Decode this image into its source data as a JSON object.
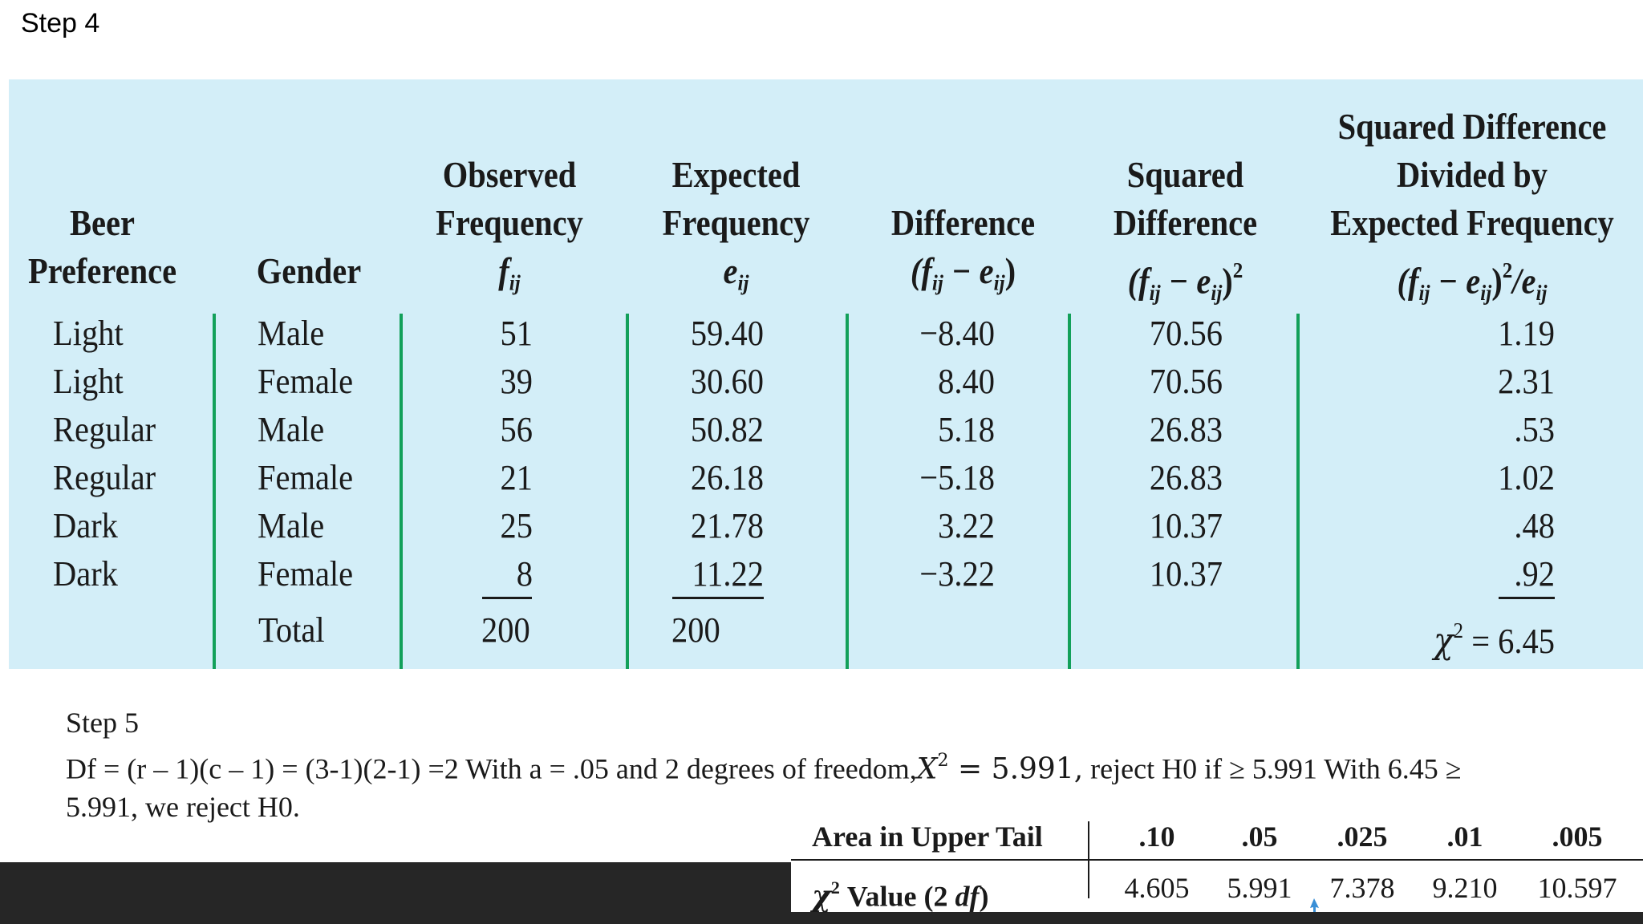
{
  "step4_title": "Step 4",
  "table": {
    "headers": {
      "beer_preference": [
        "Beer",
        "Preference"
      ],
      "gender": "Gender",
      "observed": [
        "Observed",
        "Frequency",
        "f",
        "ij"
      ],
      "expected": [
        "Expected",
        "Frequency",
        "e",
        "ij"
      ],
      "difference": [
        "Difference",
        "(f",
        "ij",
        " − e",
        "ij",
        ")"
      ],
      "squared": [
        "Squared",
        "Difference",
        "(f",
        "ij",
        " − e",
        "ij",
        ")",
        "2"
      ],
      "divided": [
        "Squared Difference",
        "Divided by",
        "Expected Frequency",
        "(f",
        "ij",
        " − e",
        "ij",
        ")",
        "2",
        "/e",
        "ij"
      ]
    },
    "rows": [
      {
        "beer": "Light",
        "gender": "Male",
        "observed": "51",
        "expected": "59.40",
        "difference": "−8.40",
        "squared": "70.56",
        "divided": "1.19"
      },
      {
        "beer": "Light",
        "gender": "Female",
        "observed": "39",
        "expected": "30.60",
        "difference": "8.40",
        "squared": "70.56",
        "divided": "2.31"
      },
      {
        "beer": "Regular",
        "gender": "Male",
        "observed": "56",
        "expected": "50.82",
        "difference": "5.18",
        "squared": "26.83",
        "divided": ".53"
      },
      {
        "beer": "Regular",
        "gender": "Female",
        "observed": "21",
        "expected": "26.18",
        "difference": "−5.18",
        "squared": "26.83",
        "divided": "1.02"
      },
      {
        "beer": "Dark",
        "gender": "Male",
        "observed": "25",
        "expected": "21.78",
        "difference": "3.22",
        "squared": "10.37",
        "divided": ".48"
      },
      {
        "beer": "Dark",
        "gender": "Female",
        "observed": "8",
        "expected": "11.22",
        "difference": "−3.22",
        "squared": "10.37",
        "divided": ".92"
      }
    ],
    "total_label": "Total",
    "total_observed": "200",
    "total_expected": "200",
    "chi_symbol": "χ",
    "chi_sup": "2",
    "chi_value": " = 6.45"
  },
  "step5": {
    "title": "Step 5",
    "line1_a": "Df = (r – 1)(c – 1) = (3-1)(2-1) =2 With a = .05 and 2 degrees of freedom,",
    "line1_x": "X",
    "line1_sup": "2",
    "line1_eq": " = 5.991,",
    "line1_b": " reject H0 if ≥ 5.991 With 6.45 ≥",
    "line2": "5.991, we reject H0."
  },
  "chi_table": {
    "row1_label": "Area in Upper Tail",
    "row2_label_chi": "χ",
    "row2_label_sup": "2",
    "row2_label_rest": " Value (2 ",
    "row2_label_df": "df",
    "row2_label_close": ")",
    "areas": [
      ".10",
      ".05",
      ".025",
      ".01",
      ".005"
    ],
    "values": [
      "4.605",
      "5.991",
      "7.378",
      "9.210",
      "10.597"
    ]
  },
  "colors": {
    "panel": "#d3eef8",
    "rule": "#12a05a",
    "dark_bar": "#262626"
  }
}
